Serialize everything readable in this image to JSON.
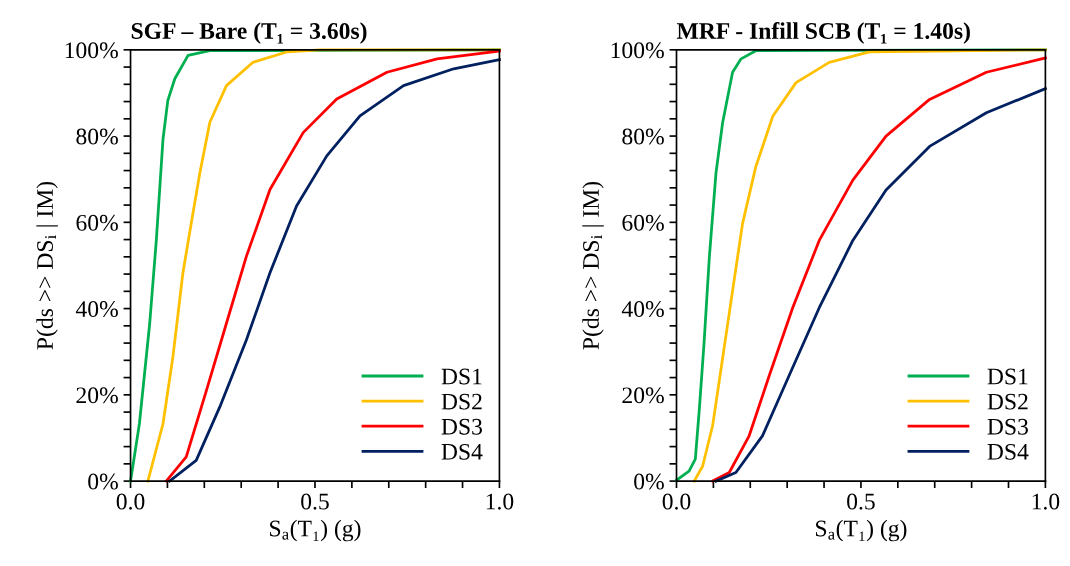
{
  "chart_data": [
    {
      "type": "line",
      "title": "SGF – Bare (T₁ = 3.60s)",
      "xlabel": "S$_{a}$(T₁) (g)",
      "ylabel": "P(ds >> DS$_{i}$ | IM)",
      "legend": "bottom right",
      "grid": false,
      "marker": "none",
      "line_style": "solid",
      "xlim": [
        0,
        1
      ],
      "ylim": [
        0,
        100
      ],
      "xticks": [
        {
          "value": 0,
          "label": "0.0"
        },
        {
          "value": 0.1,
          "label": null
        },
        {
          "value": 0.2,
          "label": null
        },
        {
          "value": 0.3,
          "label": null
        },
        {
          "value": 0.4,
          "label": null
        },
        {
          "value": 0.5,
          "label": "0.5"
        },
        {
          "value": 0.6,
          "label": null
        },
        {
          "value": 0.7,
          "label": null
        },
        {
          "value": 0.8,
          "label": null
        },
        {
          "value": 0.9,
          "label": null
        },
        {
          "value": 1.0,
          "label": "1.0"
        }
      ],
      "yticks": [
        {
          "value": 0,
          "label": "0%"
        },
        {
          "value": 4,
          "label": null
        },
        {
          "value": 8,
          "label": null
        },
        {
          "value": 12,
          "label": null
        },
        {
          "value": 16,
          "label": null
        },
        {
          "value": 20,
          "label": "20%"
        },
        {
          "value": 24,
          "label": null
        },
        {
          "value": 28,
          "label": null
        },
        {
          "value": 32,
          "label": null
        },
        {
          "value": 36,
          "label": null
        },
        {
          "value": 40,
          "label": "40%"
        },
        {
          "value": 44,
          "label": null
        },
        {
          "value": 48,
          "label": null
        },
        {
          "value": 52,
          "label": null
        },
        {
          "value": 56,
          "label": null
        },
        {
          "value": 60,
          "label": "60%"
        },
        {
          "value": 64,
          "label": null
        },
        {
          "value": 68,
          "label": null
        },
        {
          "value": 72,
          "label": null
        },
        {
          "value": 76,
          "label": null
        },
        {
          "value": 80,
          "label": "80%"
        },
        {
          "value": 84,
          "label": null
        },
        {
          "value": 88,
          "label": null
        },
        {
          "value": 92,
          "label": null
        },
        {
          "value": 96,
          "label": null
        },
        {
          "value": 100,
          "label": "100%"
        }
      ],
      "series": [
        {
          "name": "DS1",
          "color": "#00b050",
          "x": [
            0,
            0.024,
            0.052,
            0.07,
            0.088,
            0.101,
            0.12,
            0.156,
            0.215,
            1.0
          ],
          "values": [
            0,
            13.3,
            36.6,
            56,
            79.3,
            88.2,
            93.3,
            98.7,
            99.8,
            100
          ]
        },
        {
          "name": "DS2",
          "color": "#ffc000",
          "x": [
            0.047,
            0.088,
            0.115,
            0.142,
            0.165,
            0.188,
            0.215,
            0.26,
            0.332,
            0.423,
            0.514,
            1.0
          ],
          "values": [
            0,
            13.3,
            28.9,
            48.3,
            60,
            71.5,
            83.2,
            91.7,
            97.1,
            99.5,
            100,
            100
          ]
        },
        {
          "name": "DS3",
          "color": "#ff0000",
          "x": [
            0.097,
            0.151,
            0.206,
            0.26,
            0.314,
            0.378,
            0.468,
            0.559,
            0.695,
            0.831,
            1.0
          ],
          "values": [
            0,
            5.6,
            21.1,
            36.6,
            52.1,
            67.6,
            80.8,
            88.6,
            94.8,
            97.9,
            99.7
          ]
        },
        {
          "name": "DS4",
          "color": "#002060",
          "x": [
            0.106,
            0.178,
            0.242,
            0.314,
            0.378,
            0.45,
            0.532,
            0.622,
            0.74,
            0.876,
            1.0
          ],
          "values": [
            0,
            4.8,
            17.2,
            32.7,
            48.3,
            63.8,
            75.4,
            84.7,
            91.7,
            95.6,
            97.7
          ]
        }
      ]
    },
    {
      "type": "line",
      "title": "MRF - Infill SCB (T₁ = 1.40s)",
      "xlabel": "S$_{a}$(T₁) (g)",
      "ylabel": "P(ds >> DS$_{i}$ | IM)",
      "legend": "bottom right",
      "grid": false,
      "marker": "none",
      "line_style": "solid",
      "xlim": [
        0,
        1
      ],
      "ylim": [
        0,
        100
      ],
      "xticks": [
        {
          "value": 0,
          "label": "0.0"
        },
        {
          "value": 0.1,
          "label": null
        },
        {
          "value": 0.2,
          "label": null
        },
        {
          "value": 0.3,
          "label": null
        },
        {
          "value": 0.4,
          "label": null
        },
        {
          "value": 0.5,
          "label": "0.5"
        },
        {
          "value": 0.6,
          "label": null
        },
        {
          "value": 0.7,
          "label": null
        },
        {
          "value": 0.8,
          "label": null
        },
        {
          "value": 0.9,
          "label": null
        },
        {
          "value": 1.0,
          "label": "1.0"
        }
      ],
      "yticks": [
        {
          "value": 0,
          "label": "0%"
        },
        {
          "value": 4,
          "label": null
        },
        {
          "value": 8,
          "label": null
        },
        {
          "value": 12,
          "label": null
        },
        {
          "value": 16,
          "label": null
        },
        {
          "value": 20,
          "label": "20%"
        },
        {
          "value": 24,
          "label": null
        },
        {
          "value": 28,
          "label": null
        },
        {
          "value": 32,
          "label": null
        },
        {
          "value": 36,
          "label": null
        },
        {
          "value": 40,
          "label": "40%"
        },
        {
          "value": 44,
          "label": null
        },
        {
          "value": 48,
          "label": null
        },
        {
          "value": 52,
          "label": null
        },
        {
          "value": 56,
          "label": null
        },
        {
          "value": 60,
          "label": "60%"
        },
        {
          "value": 64,
          "label": null
        },
        {
          "value": 68,
          "label": null
        },
        {
          "value": 72,
          "label": null
        },
        {
          "value": 76,
          "label": null
        },
        {
          "value": 80,
          "label": "80%"
        },
        {
          "value": 84,
          "label": null
        },
        {
          "value": 88,
          "label": null
        },
        {
          "value": 92,
          "label": null
        },
        {
          "value": 96,
          "label": null
        },
        {
          "value": 100,
          "label": "100%"
        }
      ],
      "series": [
        {
          "name": "DS1",
          "color": "#00b050",
          "x": [
            0,
            0.034,
            0.051,
            0.062,
            0.075,
            0.089,
            0.107,
            0.125,
            0.152,
            0.175,
            0.215,
            1.0
          ],
          "values": [
            0.2,
            2.3,
            5.1,
            16.8,
            32.4,
            51.9,
            71.4,
            83.1,
            94.8,
            97.9,
            99.8,
            100
          ]
        },
        {
          "name": "DS2",
          "color": "#ffc000",
          "x": [
            0.048,
            0.071,
            0.098,
            0.125,
            0.152,
            0.179,
            0.215,
            0.261,
            0.324,
            0.414,
            0.523,
            1.0
          ],
          "values": [
            0,
            3.5,
            12.9,
            28.5,
            44.1,
            59.7,
            72.9,
            84.6,
            92.4,
            97.1,
            99.5,
            100
          ]
        },
        {
          "name": "DS3",
          "color": "#ff0000",
          "x": [
            0.098,
            0.143,
            0.197,
            0.252,
            0.315,
            0.387,
            0.478,
            0.568,
            0.686,
            0.84,
            1.0
          ],
          "values": [
            0,
            2,
            10.5,
            24.6,
            40.2,
            55.8,
            69.8,
            80,
            88.5,
            94.8,
            98.1
          ]
        },
        {
          "name": "DS4",
          "color": "#002060",
          "x": [
            0.107,
            0.161,
            0.233,
            0.306,
            0.387,
            0.478,
            0.568,
            0.686,
            0.84,
            1.0
          ],
          "values": [
            0,
            2,
            10.5,
            24.6,
            40.2,
            55.8,
            67.5,
            77.6,
            85.4,
            91
          ]
        }
      ]
    }
  ]
}
